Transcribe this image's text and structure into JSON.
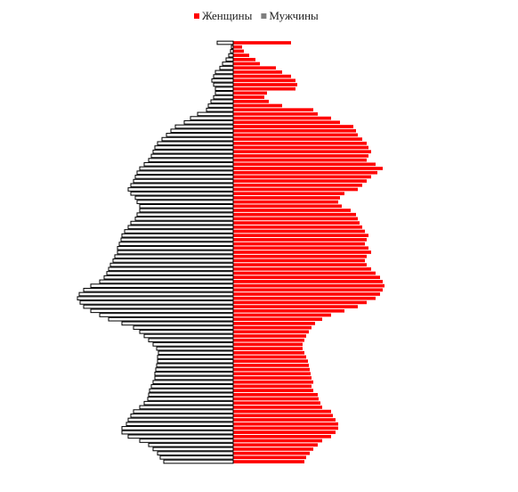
{
  "chart_data": {
    "type": "pyramid",
    "categories": [
      null,
      null,
      null,
      null,
      null,
      null,
      null,
      null,
      null,
      null,
      null,
      null,
      null,
      null,
      null,
      null,
      null,
      null,
      null,
      null,
      null,
      null,
      null,
      null,
      null,
      null,
      null,
      null,
      null,
      null,
      null,
      null,
      null,
      null,
      null,
      null,
      null,
      null,
      null,
      null,
      null,
      null,
      null,
      null,
      null,
      null,
      null,
      null,
      null,
      null,
      null,
      null,
      null,
      null,
      null,
      null,
      null,
      null,
      null,
      null,
      null,
      null,
      null,
      null,
      null,
      null,
      null,
      null,
      null,
      null,
      null,
      null,
      null,
      null,
      null,
      null,
      null,
      null,
      null,
      null,
      null,
      null,
      null,
      null,
      null,
      null,
      null,
      null,
      null,
      null,
      null,
      null,
      null,
      null,
      null,
      null,
      null,
      null,
      null,
      null,
      null
    ],
    "series": [
      {
        "name": "Женщины",
        "color": "#ff0000",
        "values": [
          80,
          82,
          86,
          90,
          95,
          100,
          110,
          115,
          118,
          118,
          115,
          112,
          110,
          100,
          98,
          96,
          95,
          90,
          88,
          90,
          88,
          87,
          86,
          85,
          84,
          82,
          80,
          78,
          78,
          80,
          82,
          85,
          88,
          92,
          100,
          110,
          125,
          140,
          150,
          160,
          165,
          168,
          170,
          168,
          165,
          160,
          155,
          150,
          148,
          150,
          155,
          152,
          148,
          150,
          152,
          148,
          145,
          142,
          140,
          138,
          132,
          122,
          118,
          120,
          125,
          140,
          145,
          150,
          155,
          162,
          168,
          160,
          150,
          152,
          155,
          152,
          150,
          145,
          140,
          138,
          135,
          120,
          110,
          95,
          90,
          55,
          40,
          35,
          38,
          70,
          72,
          70,
          65,
          55,
          48,
          30,
          25,
          18,
          12,
          10,
          65
        ]
      },
      {
        "name": "Мужчины",
        "color": "#7f7f7f",
        "values": [
          78,
          82,
          85,
          90,
          95,
          105,
          118,
          125,
          125,
          120,
          118,
          115,
          112,
          105,
          100,
          96,
          95,
          94,
          92,
          90,
          88,
          88,
          87,
          86,
          85,
          85,
          84,
          86,
          90,
          95,
          100,
          105,
          112,
          125,
          140,
          150,
          160,
          168,
          172,
          175,
          173,
          168,
          160,
          150,
          145,
          142,
          140,
          138,
          135,
          133,
          130,
          130,
          128,
          126,
          125,
          122,
          118,
          115,
          110,
          108,
          105,
          105,
          108,
          110,
          115,
          118,
          115,
          112,
          110,
          108,
          105,
          100,
          95,
          92,
          90,
          88,
          85,
          80,
          75,
          70,
          65,
          55,
          48,
          40,
          30,
          28,
          25,
          22,
          20,
          20,
          22,
          24,
          22,
          20,
          15,
          12,
          8,
          5,
          3,
          2,
          18
        ]
      }
    ]
  }
}
